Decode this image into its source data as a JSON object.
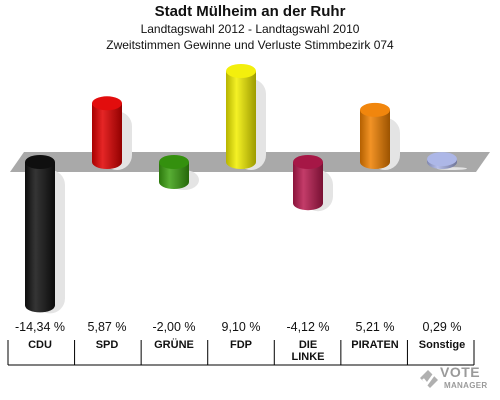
{
  "header": {
    "title": "Stadt Mülheim an der Ruhr",
    "subtitle1": "Landtagswahl 2012 - Landtagswahl 2010",
    "subtitle2": "Zweitstimmen Gewinne und Verluste Stimmbezirk 074"
  },
  "logo": {
    "line1": "VOTE",
    "line2": "MANAGER"
  },
  "chart_data": {
    "type": "bar",
    "categories": [
      "CDU",
      "SPD",
      "GRÜNE",
      "FDP",
      "DIE LINKE",
      "PIRATEN",
      "Sonstige"
    ],
    "category_lines": [
      [
        "CDU"
      ],
      [
        "SPD"
      ],
      [
        "GRÜNE"
      ],
      [
        "FDP"
      ],
      [
        "DIE",
        "LINKE"
      ],
      [
        "PIRATEN"
      ],
      [
        "Sonstige"
      ]
    ],
    "values": [
      -14.34,
      5.87,
      -2.0,
      9.1,
      -4.12,
      5.21,
      0.29
    ],
    "value_labels": [
      "-14,34 %",
      "5,87 %",
      "-2,00 %",
      "9,10 %",
      "-4,12 %",
      "5,21 %",
      "0,29 %"
    ],
    "colors": [
      "#111111",
      "#e00000",
      "#3aa010",
      "#f2ee00",
      "#b8194e",
      "#f08000",
      "#a9b3e6"
    ],
    "title": "Stadt Mülheim an der Ruhr",
    "xlabel": "",
    "ylabel": "",
    "grid": false
  }
}
